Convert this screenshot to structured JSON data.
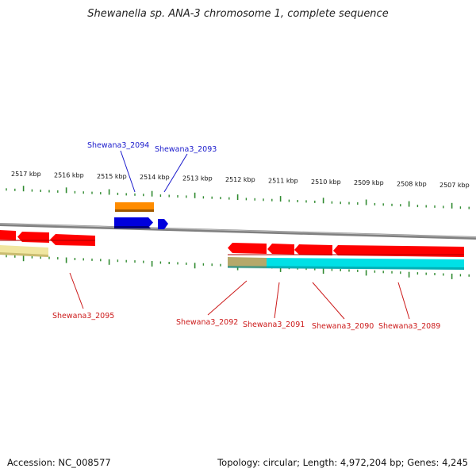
{
  "title": "Shewanella sp. ANA-3 chromosome 1, complete sequence",
  "footer": {
    "accession": "Accession: NC_008577",
    "summary": "Topology: circular; Length: 4,972,204 bp; Genes: 4,245"
  },
  "colors": {
    "backbone": "#8c8c8c",
    "tick": "#2f8a2f",
    "plus_label": "#1a1acc",
    "minus_label": "#cc1a1a",
    "red_gene": "#ff0000",
    "blue_gene": "#0000dd",
    "orange_feature": "#ff8c00",
    "cyan_feature": "#00e0e6",
    "pale_feature": "#f0e6a0",
    "olive_feature": "#b5a86a"
  },
  "axis_labels": [
    "2517 kbp",
    "2516 kbp",
    "2515 kbp",
    "2514 kbp",
    "2513 kbp",
    "2512 kbp",
    "2511 kbp",
    "2510 kbp",
    "2509 kbp",
    "2508 kbp",
    "2507 kbp"
  ],
  "genes": {
    "plus": [
      "Shewana3_2094",
      "Shewana3_2093"
    ],
    "minus": [
      "Shewana3_2095",
      "Shewana3_2092",
      "Shewana3_2091",
      "Shewana3_2090",
      "Shewana3_2089"
    ]
  }
}
